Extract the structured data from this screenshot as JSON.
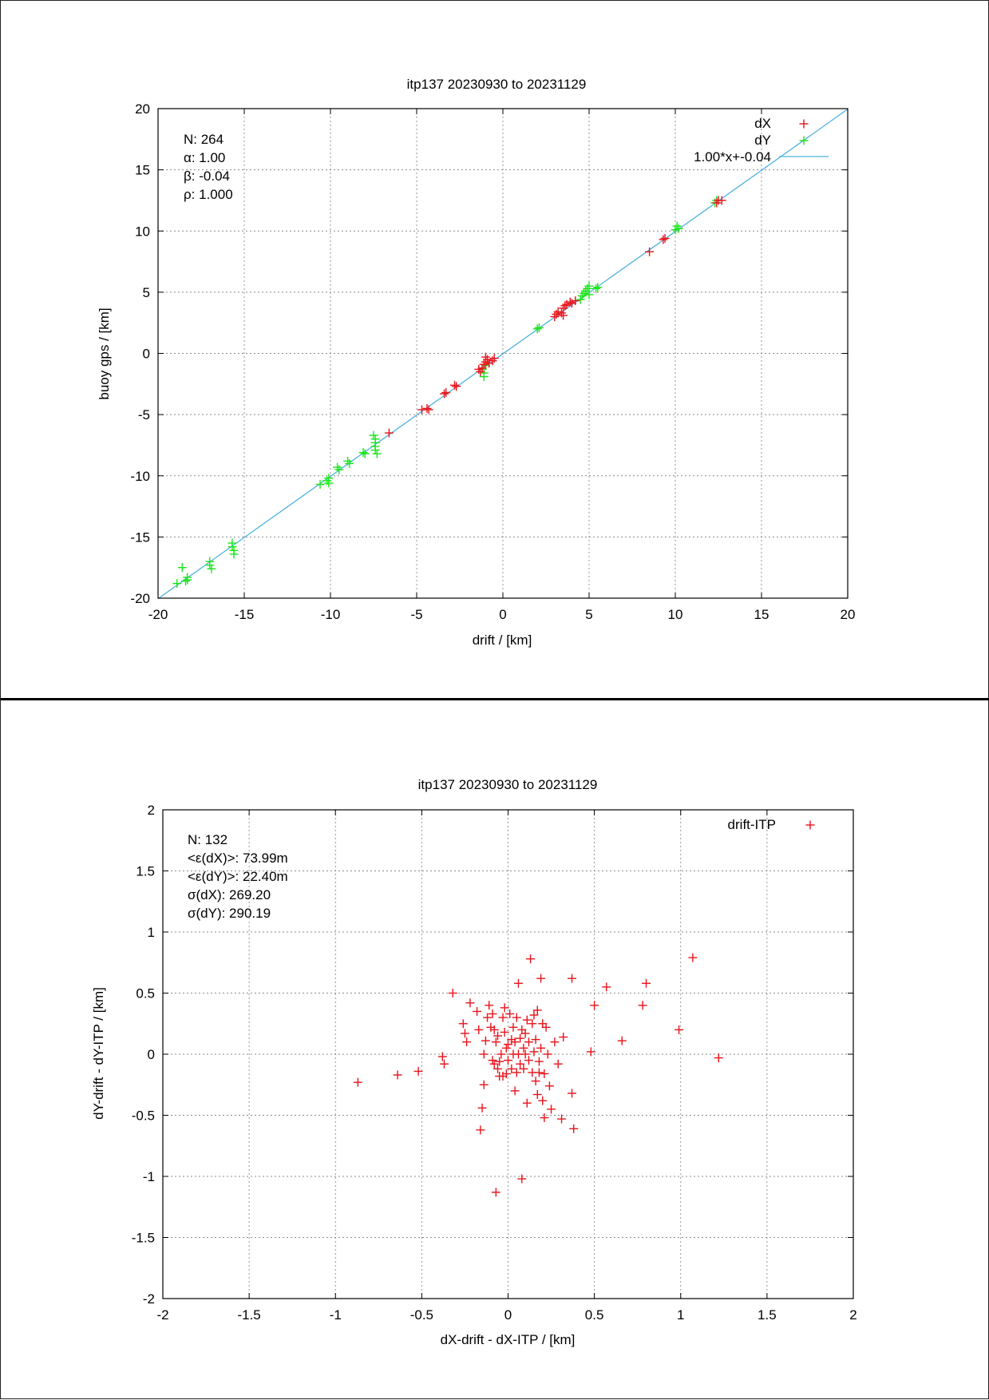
{
  "colors": {
    "dX": "#e8141b",
    "dY": "#19e619",
    "fit": "#4fb3e0",
    "grid": "#8c8c8c",
    "frame": "#000000"
  },
  "chart_data": [
    {
      "type": "scatter",
      "title": "itp137 20230930 to 20231129",
      "xlabel": "drift / [km]",
      "ylabel": "buoy gps / [km]",
      "xlim": [
        -20,
        20
      ],
      "ylim": [
        -20,
        20
      ],
      "xticks": [
        "-20",
        "-15",
        "-10",
        "-5",
        "0",
        "5",
        "10",
        "15",
        "20"
      ],
      "yticks": [
        "-20",
        "-15",
        "-10",
        "-5",
        "0",
        "5",
        "10",
        "15",
        "20"
      ],
      "grid": true,
      "legend_position": "top-right",
      "stats": [
        "N: 264",
        "α: 1.00",
        "β: -0.04",
        "ρ: 1.000"
      ],
      "fit_line": {
        "label": "1.00*x+-0.04",
        "slope": 1.0,
        "intercept": -0.04
      },
      "series": [
        {
          "name": "dX",
          "marker": "+",
          "points": [
            [
              -6.6,
              -6.5
            ],
            [
              -4.7,
              -4.6
            ],
            [
              -4.4,
              -4.5
            ],
            [
              -4.3,
              -4.6
            ],
            [
              -3.4,
              -3.3
            ],
            [
              -3.3,
              -3.2
            ],
            [
              -2.8,
              -2.6
            ],
            [
              -2.7,
              -2.7
            ],
            [
              -1.4,
              -1.3
            ],
            [
              -1.3,
              -1.5
            ],
            [
              -1.2,
              -1.2
            ],
            [
              -1.1,
              -0.9
            ],
            [
              -1.0,
              -0.7
            ],
            [
              -1.0,
              -0.3
            ],
            [
              -0.9,
              -0.5
            ],
            [
              -0.8,
              -0.8
            ],
            [
              -0.6,
              -0.6
            ],
            [
              -0.5,
              -0.4
            ],
            [
              3.0,
              3.0
            ],
            [
              3.1,
              3.2
            ],
            [
              3.2,
              3.4
            ],
            [
              3.4,
              3.3
            ],
            [
              3.5,
              3.7
            ],
            [
              3.5,
              3.1
            ],
            [
              3.6,
              3.9
            ],
            [
              3.7,
              4.0
            ],
            [
              3.9,
              4.2
            ],
            [
              4.0,
              4.1
            ],
            [
              4.2,
              4.3
            ],
            [
              8.5,
              8.3
            ],
            [
              9.3,
              9.3
            ],
            [
              9.4,
              9.4
            ],
            [
              12.4,
              12.3
            ],
            [
              12.5,
              12.5
            ],
            [
              12.7,
              12.5
            ]
          ]
        },
        {
          "name": "dY",
          "marker": "+",
          "points": [
            [
              -18.9,
              -18.8
            ],
            [
              -18.6,
              -17.5
            ],
            [
              -18.4,
              -18.6
            ],
            [
              -18.3,
              -18.3
            ],
            [
              -18.3,
              -18.5
            ],
            [
              -17.0,
              -17.0
            ],
            [
              -17.0,
              -17.3
            ],
            [
              -16.9,
              -17.6
            ],
            [
              -15.7,
              -15.5
            ],
            [
              -15.7,
              -15.8
            ],
            [
              -15.6,
              -16.1
            ],
            [
              -15.6,
              -16.4
            ],
            [
              -10.6,
              -10.7
            ],
            [
              -10.2,
              -10.4
            ],
            [
              -10.1,
              -10.6
            ],
            [
              -10.1,
              -10.2
            ],
            [
              -9.6,
              -9.3
            ],
            [
              -9.5,
              -9.5
            ],
            [
              -9.0,
              -8.8
            ],
            [
              -8.9,
              -9.0
            ],
            [
              -8.1,
              -8.1
            ],
            [
              -8.0,
              -8.2
            ],
            [
              -7.5,
              -6.7
            ],
            [
              -7.4,
              -7.0
            ],
            [
              -7.4,
              -7.3
            ],
            [
              -7.4,
              -7.6
            ],
            [
              -7.4,
              -7.9
            ],
            [
              -7.3,
              -8.2
            ],
            [
              -1.2,
              -1.3
            ],
            [
              -1.1,
              -1.6
            ],
            [
              -1.1,
              -1.9
            ],
            [
              -1.0,
              -1.0
            ],
            [
              2.0,
              2.0
            ],
            [
              2.1,
              2.1
            ],
            [
              4.5,
              4.4
            ],
            [
              4.6,
              4.7
            ],
            [
              4.7,
              4.9
            ],
            [
              4.8,
              5.1
            ],
            [
              4.9,
              5.3
            ],
            [
              5.0,
              4.8
            ],
            [
              5.0,
              5.5
            ],
            [
              5.4,
              5.3
            ],
            [
              5.5,
              5.4
            ],
            [
              10.0,
              10.1
            ],
            [
              10.1,
              10.4
            ],
            [
              10.2,
              10.2
            ],
            [
              12.3,
              12.3
            ],
            [
              12.4,
              12.5
            ]
          ]
        }
      ]
    },
    {
      "type": "scatter",
      "title": "itp137 20230930 to 20231129",
      "xlabel": "dX-drift - dX-ITP / [km]",
      "ylabel": "dY-drift - dY-ITP / [km]",
      "xlim": [
        -2,
        2
      ],
      "ylim": [
        -2,
        2
      ],
      "xticks": [
        "-2",
        "-1.5",
        "-1",
        "-0.5",
        "0",
        "0.5",
        "1",
        "1.5",
        "2"
      ],
      "yticks": [
        "-2",
        "-1.5",
        "-1",
        "-0.5",
        "0",
        "0.5",
        "1",
        "1.5",
        "2"
      ],
      "grid": true,
      "legend_position": "top-right",
      "stats": [
        "N: 132",
        "<ε(dX)>:  73.99m",
        "<ε(dY)>: 22.40m",
        "σ(dX):  269.20",
        "σ(dY):  290.19"
      ],
      "series": [
        {
          "name": "drift-ITP",
          "marker": "+",
          "points": [
            [
              -0.87,
              -0.23
            ],
            [
              -0.64,
              -0.17
            ],
            [
              -0.52,
              -0.14
            ],
            [
              -0.38,
              -0.02
            ],
            [
              -0.37,
              -0.08
            ],
            [
              -0.32,
              0.5
            ],
            [
              -0.26,
              0.25
            ],
            [
              -0.25,
              0.17
            ],
            [
              -0.24,
              0.1
            ],
            [
              -0.22,
              0.42
            ],
            [
              -0.18,
              0.35
            ],
            [
              -0.17,
              0.2
            ],
            [
              -0.16,
              -0.62
            ],
            [
              -0.15,
              -0.44
            ],
            [
              -0.14,
              0.0
            ],
            [
              -0.14,
              -0.25
            ],
            [
              -0.13,
              0.11
            ],
            [
              -0.12,
              0.3
            ],
            [
              -0.11,
              0.4
            ],
            [
              -0.1,
              0.22
            ],
            [
              -0.09,
              -0.05
            ],
            [
              -0.09,
              0.33
            ],
            [
              -0.08,
              0.2
            ],
            [
              -0.08,
              -0.08
            ],
            [
              -0.07,
              -1.13
            ],
            [
              -0.07,
              0.1
            ],
            [
              -0.06,
              -0.12
            ],
            [
              -0.06,
              0.15
            ],
            [
              -0.05,
              -0.18
            ],
            [
              -0.05,
              -0.06
            ],
            [
              -0.04,
              0.0
            ],
            [
              -0.03,
              0.3
            ],
            [
              -0.03,
              -0.18
            ],
            [
              -0.02,
              0.18
            ],
            [
              -0.02,
              0.38
            ],
            [
              -0.01,
              0.05
            ],
            [
              -0.01,
              -0.16
            ],
            [
              0.0,
              0.08
            ],
            [
              0.0,
              -0.05
            ],
            [
              0.01,
              0.33
            ],
            [
              0.02,
              0.12
            ],
            [
              0.02,
              -0.12
            ],
            [
              0.03,
              0.0
            ],
            [
              0.03,
              0.22
            ],
            [
              0.04,
              -0.3
            ],
            [
              0.04,
              0.1
            ],
            [
              0.05,
              0.3
            ],
            [
              0.05,
              -0.15
            ],
            [
              0.06,
              0.0
            ],
            [
              0.06,
              0.58
            ],
            [
              0.07,
              0.13
            ],
            [
              0.07,
              -0.08
            ],
            [
              0.08,
              0.2
            ],
            [
              0.08,
              -1.02
            ],
            [
              0.09,
              0.05
            ],
            [
              0.09,
              -0.12
            ],
            [
              0.1,
              0.17
            ],
            [
              0.1,
              0.0
            ],
            [
              0.11,
              -0.4
            ],
            [
              0.11,
              0.28
            ],
            [
              0.12,
              -0.05
            ],
            [
              0.12,
              0.1
            ],
            [
              0.13,
              0.78
            ],
            [
              0.14,
              0.25
            ],
            [
              0.14,
              -0.15
            ],
            [
              0.15,
              0.02
            ],
            [
              0.15,
              0.32
            ],
            [
              0.16,
              -0.22
            ],
            [
              0.16,
              0.12
            ],
            [
              0.17,
              -0.33
            ],
            [
              0.17,
              0.36
            ],
            [
              0.18,
              -0.15
            ],
            [
              0.18,
              -0.06
            ],
            [
              0.19,
              0.05
            ],
            [
              0.19,
              0.62
            ],
            [
              0.2,
              -0.38
            ],
            [
              0.2,
              0.25
            ],
            [
              0.21,
              -0.52
            ],
            [
              0.21,
              -0.16
            ],
            [
              0.22,
              0.22
            ],
            [
              0.23,
              0.0
            ],
            [
              0.24,
              -0.26
            ],
            [
              0.25,
              -0.45
            ],
            [
              0.27,
              0.1
            ],
            [
              0.29,
              -0.08
            ],
            [
              0.31,
              -0.53
            ],
            [
              0.32,
              0.14
            ],
            [
              0.37,
              0.62
            ],
            [
              0.37,
              -0.32
            ],
            [
              0.38,
              -0.61
            ],
            [
              0.48,
              0.02
            ],
            [
              0.5,
              0.4
            ],
            [
              0.57,
              0.55
            ],
            [
              0.66,
              0.11
            ],
            [
              0.78,
              0.4
            ],
            [
              0.8,
              0.58
            ],
            [
              0.99,
              0.2
            ],
            [
              1.07,
              0.79
            ],
            [
              1.22,
              -0.03
            ]
          ]
        }
      ]
    }
  ]
}
